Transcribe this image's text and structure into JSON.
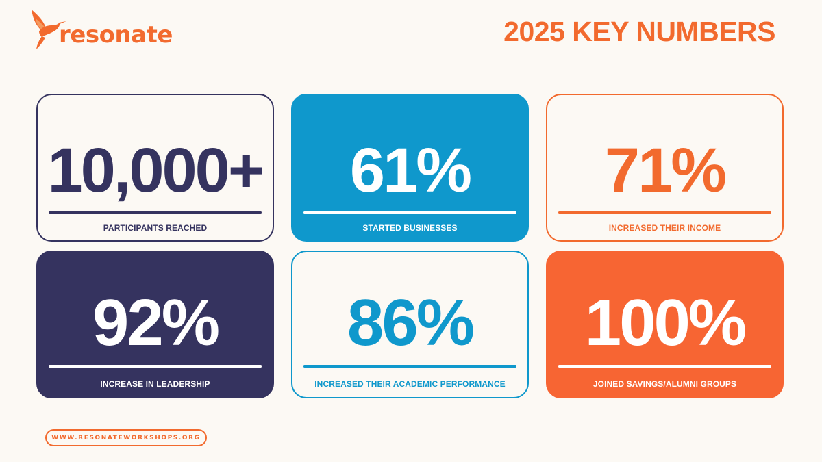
{
  "brand": {
    "name": "resonate",
    "logo_icon": "hummingbird-icon",
    "accent_color": "#f26a2e",
    "navy_color": "#35335f",
    "blue_color": "#0f98cc"
  },
  "header": {
    "title": "2025 KEY NUMBERS"
  },
  "stats": [
    {
      "value": "10,000+",
      "label": "PARTICIPANTS REACHED"
    },
    {
      "value": "61%",
      "label": "STARTED BUSINESSES"
    },
    {
      "value": "71%",
      "label": "INCREASED THEIR INCOME"
    },
    {
      "value": "92%",
      "label": "INCREASE IN LEADERSHIP"
    },
    {
      "value": "86%",
      "label": "INCREASED THEIR ACADEMIC PERFORMANCE"
    },
    {
      "value": "100%",
      "label": "JOINED SAVINGS/ALUMNI GROUPS"
    }
  ],
  "footer": {
    "website": "WWW.RESONATEWORKSHOPS.ORG"
  }
}
